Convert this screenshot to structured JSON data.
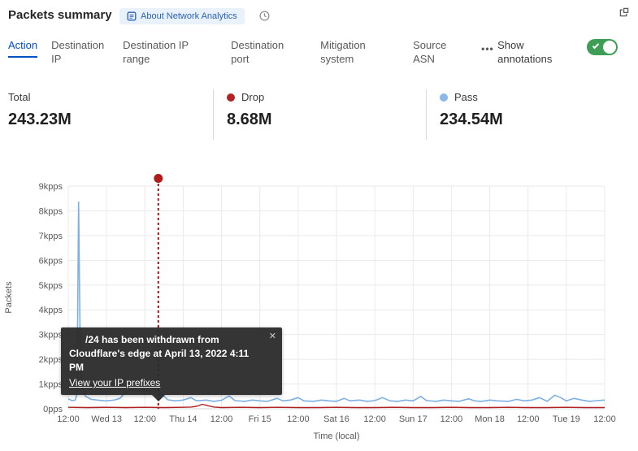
{
  "header": {
    "title": "Packets summary",
    "about_label": "About Network Analytics"
  },
  "tabs": {
    "items": [
      {
        "label": "Action",
        "active": true
      },
      {
        "label": "Destination IP"
      },
      {
        "label": "Destination IP range"
      },
      {
        "label": "Destination port"
      },
      {
        "label": "Mitigation system"
      },
      {
        "label": "Source ASN"
      }
    ],
    "more_label": "•••",
    "show_annotations_label": "Show annotations",
    "annotations_on": true
  },
  "stats": [
    {
      "label": "Total",
      "value": "243.23M",
      "color": null
    },
    {
      "label": "Drop",
      "value": "8.68M",
      "color": "#b22222"
    },
    {
      "label": "Pass",
      "value": "234.54M",
      "color": "#8ab9e9"
    }
  ],
  "tooltip": {
    "line1": "/24 has been withdrawn from",
    "line2": "Cloudflare's edge at April 13, 2022 4:11 PM",
    "link": "View your IP prefixes",
    "close_glyph": "✕"
  },
  "colors": {
    "accent": "#0051c3",
    "toggle_green": "#3f9e55",
    "drop": "#b22222",
    "pass_line": "#7db0e3",
    "annotation": "#8f1c1c"
  },
  "chart_data": {
    "type": "line",
    "title": "Packets summary",
    "xlabel": "Time (local)",
    "ylabel": "Packets",
    "unit": "kpps",
    "ylim": [
      0,
      9
    ],
    "yticks": [
      "9kpps",
      "8kpps",
      "7kpps",
      "6kpps",
      "5kpps",
      "4kpps",
      "3kpps",
      "2kpps",
      "1kpps",
      "0pps"
    ],
    "xticks": [
      "12:00",
      "Wed 13",
      "12:00",
      "Thu 14",
      "12:00",
      "Fri 15",
      "12:00",
      "Sat 16",
      "12:00",
      "Sun 17",
      "12:00",
      "Mon 18",
      "12:00",
      "Tue 19",
      "12:00"
    ],
    "grid": true,
    "legend": "stats-row",
    "series": [
      {
        "name": "Pass",
        "color": "#7db0e3",
        "points": [
          [
            0,
            0.4
          ],
          [
            0.1,
            0.33
          ],
          [
            0.18,
            0.35
          ],
          [
            0.23,
            0.6
          ],
          [
            0.27,
            8.35
          ],
          [
            0.31,
            2.6
          ],
          [
            0.36,
            0.9
          ],
          [
            0.45,
            0.5
          ],
          [
            0.6,
            0.38
          ],
          [
            0.8,
            0.34
          ],
          [
            1.0,
            0.32
          ],
          [
            1.2,
            0.35
          ],
          [
            1.35,
            0.42
          ],
          [
            1.5,
            0.68
          ],
          [
            1.65,
            0.78
          ],
          [
            1.8,
            0.72
          ],
          [
            2.0,
            0.75
          ],
          [
            2.2,
            0.7
          ],
          [
            2.35,
            0.72
          ],
          [
            2.5,
            0.5
          ],
          [
            2.6,
            0.36
          ],
          [
            2.8,
            0.32
          ],
          [
            3.0,
            0.35
          ],
          [
            3.2,
            0.45
          ],
          [
            3.35,
            0.32
          ],
          [
            3.6,
            0.35
          ],
          [
            3.8,
            0.3
          ],
          [
            4.0,
            0.34
          ],
          [
            4.2,
            0.52
          ],
          [
            4.35,
            0.33
          ],
          [
            4.6,
            0.3
          ],
          [
            4.8,
            0.35
          ],
          [
            5.0,
            0.32
          ],
          [
            5.2,
            0.3
          ],
          [
            5.45,
            0.42
          ],
          [
            5.6,
            0.32
          ],
          [
            5.8,
            0.35
          ],
          [
            6.0,
            0.45
          ],
          [
            6.15,
            0.32
          ],
          [
            6.4,
            0.3
          ],
          [
            6.6,
            0.35
          ],
          [
            6.8,
            0.32
          ],
          [
            7.0,
            0.3
          ],
          [
            7.2,
            0.42
          ],
          [
            7.35,
            0.32
          ],
          [
            7.6,
            0.35
          ],
          [
            7.8,
            0.3
          ],
          [
            8.0,
            0.33
          ],
          [
            8.2,
            0.45
          ],
          [
            8.4,
            0.32
          ],
          [
            8.6,
            0.3
          ],
          [
            8.8,
            0.35
          ],
          [
            9.0,
            0.32
          ],
          [
            9.2,
            0.5
          ],
          [
            9.35,
            0.33
          ],
          [
            9.6,
            0.3
          ],
          [
            9.8,
            0.35
          ],
          [
            10.0,
            0.32
          ],
          [
            10.2,
            0.3
          ],
          [
            10.45,
            0.4
          ],
          [
            10.6,
            0.32
          ],
          [
            10.8,
            0.3
          ],
          [
            11.0,
            0.35
          ],
          [
            11.2,
            0.32
          ],
          [
            11.5,
            0.3
          ],
          [
            11.7,
            0.38
          ],
          [
            11.9,
            0.32
          ],
          [
            12.1,
            0.35
          ],
          [
            12.3,
            0.45
          ],
          [
            12.5,
            0.3
          ],
          [
            12.7,
            0.55
          ],
          [
            12.85,
            0.45
          ],
          [
            13.0,
            0.32
          ],
          [
            13.2,
            0.42
          ],
          [
            13.4,
            0.35
          ],
          [
            13.6,
            0.3
          ],
          [
            13.8,
            0.33
          ],
          [
            14,
            0.35
          ]
        ]
      },
      {
        "name": "Drop",
        "color": "#b22222",
        "points": [
          [
            0,
            0.06
          ],
          [
            0.5,
            0.05
          ],
          [
            1,
            0.06
          ],
          [
            1.5,
            0.05
          ],
          [
            2,
            0.06
          ],
          [
            2.5,
            0.05
          ],
          [
            3,
            0.06
          ],
          [
            3.2,
            0.07
          ],
          [
            3.35,
            0.1
          ],
          [
            3.5,
            0.18
          ],
          [
            3.65,
            0.12
          ],
          [
            3.8,
            0.07
          ],
          [
            4,
            0.05
          ],
          [
            4.5,
            0.06
          ],
          [
            5,
            0.05
          ],
          [
            5.5,
            0.06
          ],
          [
            6,
            0.05
          ],
          [
            6.5,
            0.05
          ],
          [
            7,
            0.06
          ],
          [
            7.5,
            0.05
          ],
          [
            8,
            0.05
          ],
          [
            8.5,
            0.06
          ],
          [
            9,
            0.05
          ],
          [
            9.5,
            0.05
          ],
          [
            10,
            0.06
          ],
          [
            10.5,
            0.05
          ],
          [
            11,
            0.05
          ],
          [
            11.5,
            0.06
          ],
          [
            12,
            0.05
          ],
          [
            12.5,
            0.05
          ],
          [
            13,
            0.06
          ],
          [
            13.5,
            0.05
          ],
          [
            14,
            0.05
          ]
        ]
      }
    ],
    "annotation": {
      "t": 2.35,
      "text": "/24 has been withdrawn from Cloudflare's edge at April 13, 2022 4:11 PM"
    }
  }
}
